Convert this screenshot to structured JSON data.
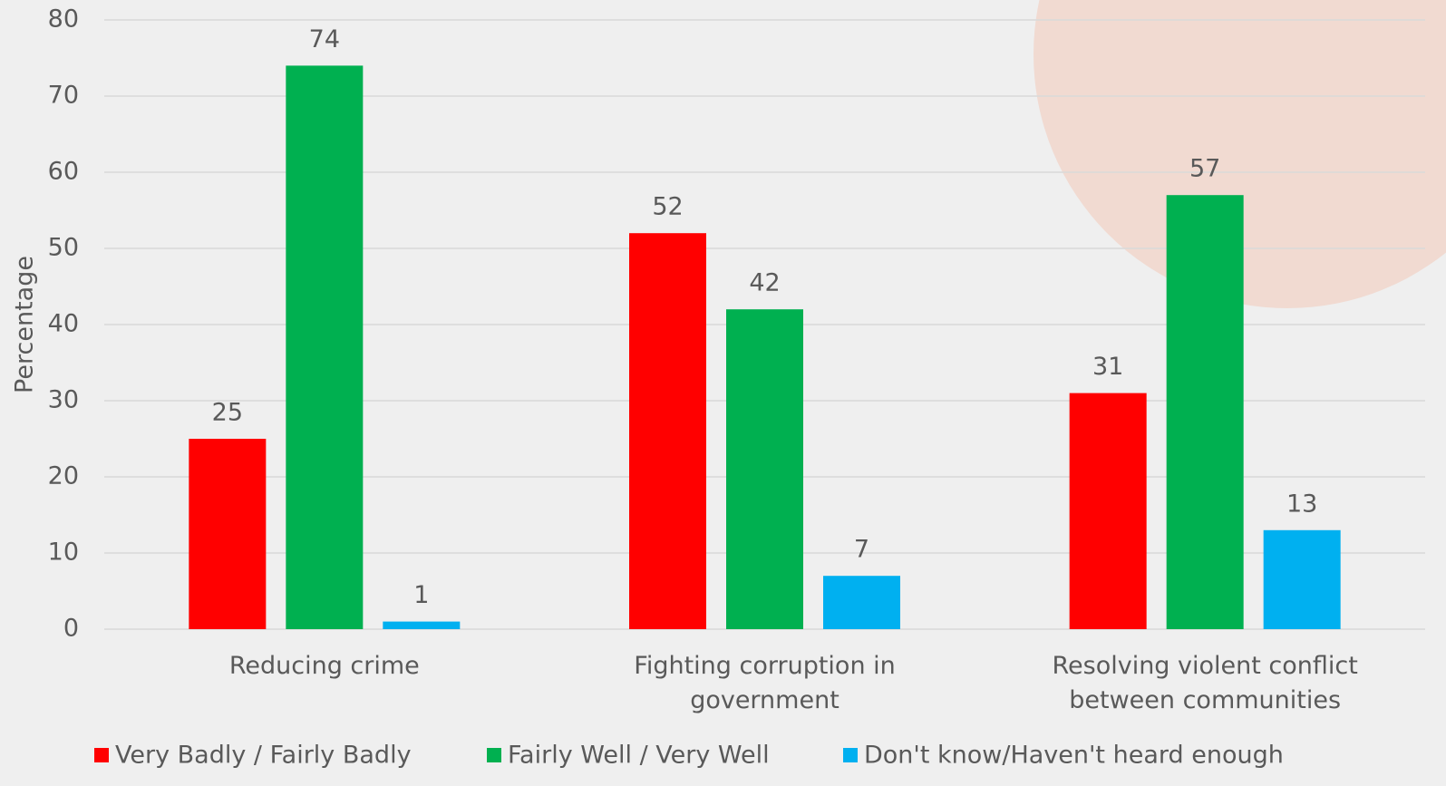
{
  "chart_data": {
    "type": "bar",
    "y_label": "Percentage",
    "categories": [
      "Reducing crime",
      "Fighting corruption in government",
      "Resolving violent conflict between communities"
    ],
    "series": [
      {
        "name": "Very Badly / Fairly Badly",
        "color": "#ff0000",
        "values": [
          25,
          52,
          31
        ]
      },
      {
        "name": "Fairly Well / Very Well",
        "color": "#00b050",
        "values": [
          74,
          42,
          57
        ]
      },
      {
        "name": "Don't know/Haven't heard enough",
        "color": "#00b0f0",
        "values": [
          1,
          7,
          13
        ]
      }
    ],
    "ylim": [
      0,
      80
    ],
    "yticks": [
      0,
      10,
      20,
      30,
      40,
      50,
      60,
      70,
      80
    ],
    "grid": true,
    "legend": "bottom"
  }
}
